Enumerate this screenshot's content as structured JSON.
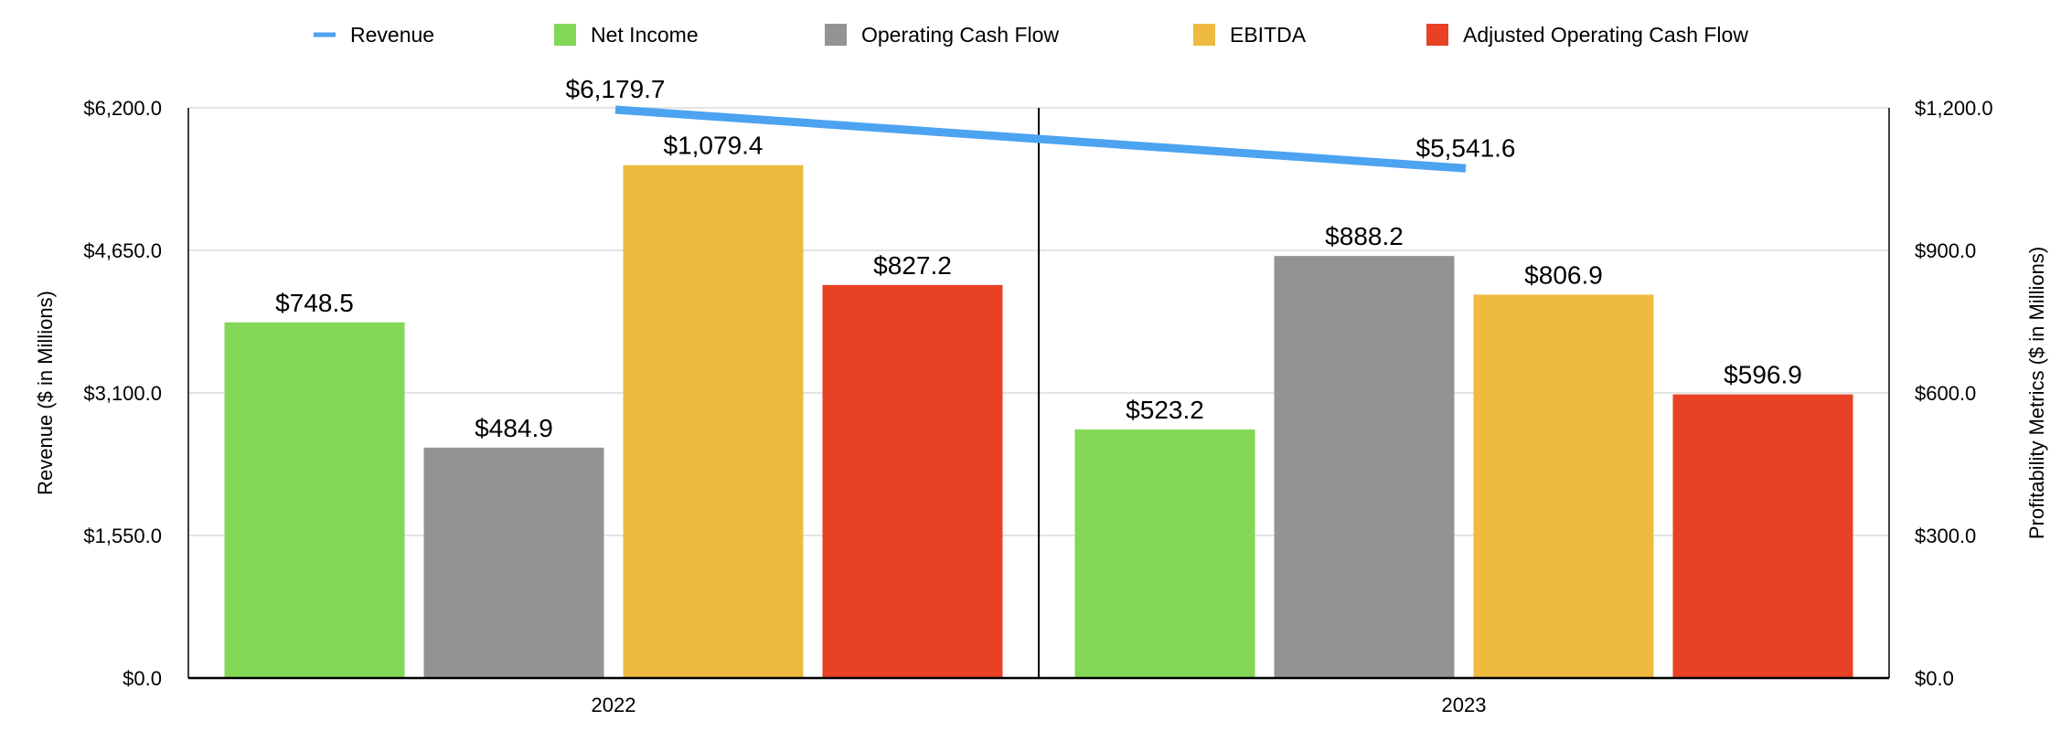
{
  "chart_data": {
    "type": "bar",
    "title": "",
    "categories": [
      "2022",
      "2023"
    ],
    "xlabel": "",
    "ylabel": "Revenue ($ in Millions)",
    "y2label": "Profitability Metrics ($ in Millions)",
    "ylim": [
      0,
      6200
    ],
    "y2lim": [
      0,
      1200
    ],
    "yticks": [
      "$0.0",
      "$1,550.0",
      "$3,100.0",
      "$4,650.0",
      "$6,200.0"
    ],
    "y2ticks": [
      "$0.0",
      "$300.0",
      "$600.0",
      "$900.0",
      "$1,200.0"
    ],
    "grid": true,
    "legend_position": "top",
    "line_series": {
      "name": "Revenue",
      "axis": "left",
      "values": [
        6179.7,
        5541.6
      ],
      "labels": [
        "$6,179.7",
        "$5,541.6"
      ],
      "color": "#4ca3f0"
    },
    "series": [
      {
        "name": "Net Income",
        "axis": "right",
        "values": [
          748.5,
          523.2
        ],
        "labels": [
          "$748.5",
          "$523.2"
        ],
        "color": "#82d756"
      },
      {
        "name": "Operating Cash Flow",
        "axis": "right",
        "values": [
          484.9,
          888.2
        ],
        "labels": [
          "$484.9",
          "$888.2"
        ],
        "color": "#939393"
      },
      {
        "name": "EBITDA",
        "axis": "right",
        "values": [
          1079.4,
          806.9
        ],
        "labels": [
          "$1,079.4",
          "$806.9"
        ],
        "color": "#eebb40"
      },
      {
        "name": "Adjusted Operating Cash Flow",
        "axis": "right",
        "values": [
          827.2,
          596.9
        ],
        "labels": [
          "$827.2",
          "$596.9"
        ],
        "color": "#e84126"
      }
    ]
  }
}
